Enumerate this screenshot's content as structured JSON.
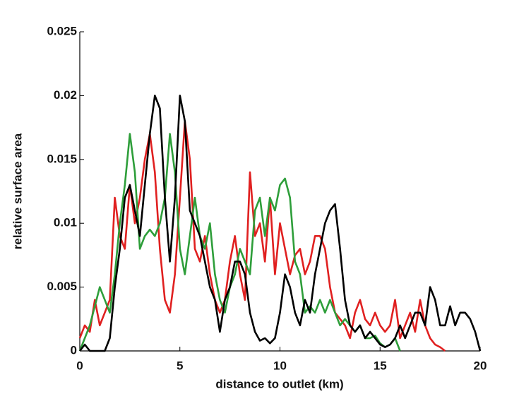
{
  "chart_data": {
    "type": "line",
    "xlabel": "distance to outlet (km)",
    "ylabel": "relative surface area",
    "x": [
      0,
      0.25,
      0.5,
      0.75,
      1,
      1.25,
      1.5,
      1.75,
      2,
      2.25,
      2.5,
      2.75,
      3,
      3.25,
      3.5,
      3.75,
      4,
      4.25,
      4.5,
      4.75,
      5,
      5.25,
      5.5,
      5.75,
      6,
      6.25,
      6.5,
      6.75,
      7,
      7.25,
      7.5,
      7.75,
      8,
      8.25,
      8.5,
      8.75,
      9,
      9.25,
      9.5,
      9.75,
      10,
      10.25,
      10.5,
      10.75,
      11,
      11.25,
      11.5,
      11.75,
      12,
      12.25,
      12.5,
      12.75,
      13,
      13.25,
      13.5,
      13.75,
      14,
      14.25,
      14.5,
      14.75,
      15,
      15.25,
      15.5,
      15.75,
      16,
      16.25,
      16.5,
      16.75,
      17,
      17.25,
      17.5,
      17.75,
      18,
      18.25,
      18.5,
      18.75,
      19,
      19.25,
      19.5,
      19.75,
      20
    ],
    "series": [
      {
        "color": "#e02020",
        "values": [
          0.001,
          0.002,
          0.0015,
          0.004,
          0.002,
          0.003,
          0.004,
          0.012,
          0.009,
          0.008,
          0.013,
          0.01,
          0.012,
          0.015,
          0.017,
          0.014,
          0.008,
          0.004,
          0.003,
          0.006,
          0.012,
          0.018,
          0.015,
          0.008,
          0.007,
          0.009,
          0.006,
          0.004,
          0.003,
          0.004,
          0.007,
          0.009,
          0.006,
          0.004,
          0.014,
          0.009,
          0.01,
          0.007,
          0.012,
          0.006,
          0.01,
          0.008,
          0.006,
          0.0075,
          0.008,
          0.006,
          0.007,
          0.009,
          0.009,
          0.008,
          0.005,
          0.003,
          0.0025,
          0.002,
          0.001,
          0.003,
          0.004,
          0.0025,
          0.002,
          0.003,
          0.002,
          0.0015,
          0.002,
          0.004,
          0.001,
          0.002,
          0.003,
          0.0015,
          0.004,
          0.002,
          0.001,
          0.0005,
          0.0003,
          0,
          null,
          null,
          null,
          null,
          null,
          null,
          null
        ]
      },
      {
        "color": "#2e9e3a",
        "values": [
          0,
          0.001,
          0.002,
          0.0035,
          0.005,
          0.004,
          0.003,
          0.006,
          0.01,
          0.013,
          0.017,
          0.014,
          0.008,
          0.009,
          0.0095,
          0.009,
          0.01,
          0.012,
          0.017,
          0.014,
          0.008,
          0.006,
          0.009,
          0.012,
          0.009,
          0.008,
          0.01,
          0.006,
          0.004,
          0.003,
          0.005,
          0.006,
          0.008,
          0.007,
          0.006,
          0.011,
          0.012,
          0.009,
          0.012,
          0.011,
          0.013,
          0.0135,
          0.012,
          0.007,
          0.006,
          0.003,
          0.0035,
          0.003,
          0.004,
          0.003,
          0.004,
          0.003,
          0.002,
          0.0025,
          0.002,
          0.0015,
          0.002,
          0.001,
          0.001,
          0.0012,
          0.0006,
          0.0003,
          0.0005,
          0.001,
          0,
          null,
          null,
          null,
          null,
          null,
          null,
          null,
          null,
          null,
          null,
          null,
          null,
          null,
          null,
          null,
          null
        ]
      },
      {
        "color": "#000000",
        "values": [
          0,
          0.0005,
          0,
          0,
          0,
          0,
          0.001,
          0.005,
          0.008,
          0.012,
          0.013,
          0.011,
          0.009,
          0.013,
          0.017,
          0.02,
          0.019,
          0.012,
          0.007,
          0.012,
          0.02,
          0.018,
          0.011,
          0.01,
          0.009,
          0.007,
          0.005,
          0.004,
          0.0015,
          0.004,
          0.005,
          0.007,
          0.007,
          0.006,
          0.003,
          0.0015,
          0.0008,
          0.001,
          0.0006,
          0.001,
          0.003,
          0.006,
          0.005,
          0.003,
          0.002,
          0.004,
          0.003,
          0.006,
          0.008,
          0.01,
          0.011,
          0.0115,
          0.008,
          0.004,
          0.002,
          0.0015,
          0.002,
          0.001,
          0.0015,
          0.001,
          0.0005,
          0.0003,
          0.0005,
          0.001,
          0.002,
          0.001,
          0.002,
          0.003,
          0.003,
          0.002,
          0.005,
          0.004,
          0.002,
          0.002,
          0.0035,
          0.002,
          0.003,
          0.003,
          0.0025,
          0.0015,
          0
        ]
      }
    ],
    "xlim": [
      0,
      20
    ],
    "xticks": [
      0,
      5,
      10,
      15,
      20
    ],
    "ylim": [
      0,
      0.025
    ],
    "yticks": [
      0,
      0.005,
      0.01,
      0.015,
      0.02,
      0.025
    ]
  }
}
